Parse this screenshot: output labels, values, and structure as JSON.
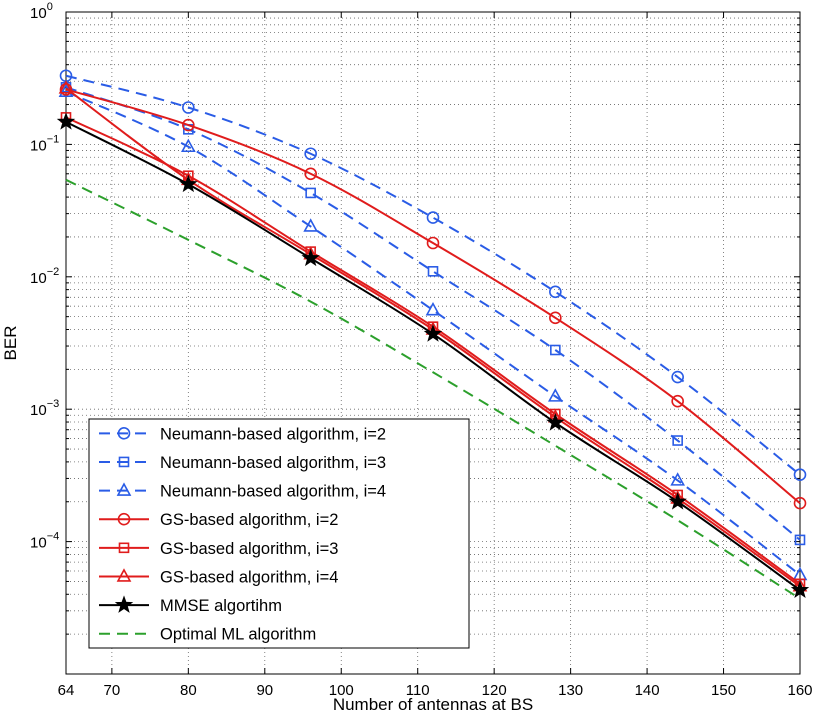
{
  "chart_data": {
    "type": "line",
    "title": "",
    "xlabel": "Number of antennas at BS",
    "ylabel": "BER",
    "xlim": [
      64,
      160
    ],
    "ylim": [
      1e-05,
      1
    ],
    "yscale": "log",
    "grid": true,
    "xticks": [
      64,
      70,
      80,
      90,
      100,
      110,
      120,
      130,
      140,
      150,
      160
    ],
    "xtick_labels": [
      "64",
      "70",
      "80",
      "90",
      "100",
      "110",
      "120",
      "130",
      "140",
      "150",
      "160"
    ],
    "yticks": [
      {
        "value": 1,
        "base": "10",
        "exp": "0"
      },
      {
        "value": 0.1,
        "base": "10",
        "exp": "−1"
      },
      {
        "value": 0.01,
        "base": "10",
        "exp": "−2"
      },
      {
        "value": 0.001,
        "base": "10",
        "exp": "−3"
      },
      {
        "value": 0.0001,
        "base": "10",
        "exp": "−4"
      }
    ],
    "legend_position": "bottom-left",
    "x": [
      64,
      80,
      96,
      112,
      128,
      144,
      160
    ],
    "series": [
      {
        "name": "Neumann-based algorithm, i=2",
        "color": "#2a5ce6",
        "dash": "dashed",
        "marker": "circle",
        "values": [
          0.33,
          0.19,
          0.085,
          0.028,
          0.0077,
          0.00175,
          0.00032
        ]
      },
      {
        "name": "Neumann-based algorithm, i=3",
        "color": "#2a5ce6",
        "dash": "dashed",
        "marker": "square",
        "values": [
          0.27,
          0.13,
          0.043,
          0.011,
          0.0028,
          0.00058,
          0.000103
        ]
      },
      {
        "name": "Neumann-based algorithm, i=4",
        "color": "#2a5ce6",
        "dash": "dashed",
        "marker": "triangle",
        "values": [
          0.25,
          0.096,
          0.024,
          0.0056,
          0.00125,
          0.00029,
          5.6e-05
        ]
      },
      {
        "name": "GS-based algorithm, i=2",
        "color": "#e01c1c",
        "dash": "solid",
        "marker": "circle",
        "values": [
          0.26,
          0.14,
          0.06,
          0.018,
          0.0049,
          0.00115,
          0.000195
        ]
      },
      {
        "name": "GS-based algorithm, i=3",
        "color": "#e01c1c",
        "dash": "solid",
        "marker": "square",
        "values": [
          0.16,
          0.058,
          0.0155,
          0.0042,
          0.00092,
          0.000225,
          4.8e-05
        ]
      },
      {
        "name": "GS-based algorithm, i=4",
        "color": "#e01c1c",
        "dash": "solid",
        "marker": "triangle",
        "values": [
          0.265,
          0.054,
          0.0148,
          0.004,
          0.00087,
          0.000212,
          4.6e-05
        ]
      },
      {
        "name": "MMSE algortihm",
        "color": "#000000",
        "dash": "solid",
        "marker": "star",
        "values": [
          0.148,
          0.05,
          0.0138,
          0.0037,
          0.00079,
          0.0002,
          4.3e-05
        ]
      },
      {
        "name": "Optimal ML algorithm",
        "color": "#2ca02c",
        "dash": "dashed",
        "marker": "none",
        "values": [
          0.054,
          0.019,
          0.0065,
          0.0019,
          0.00053,
          0.000145,
          3.7e-05
        ]
      }
    ]
  }
}
